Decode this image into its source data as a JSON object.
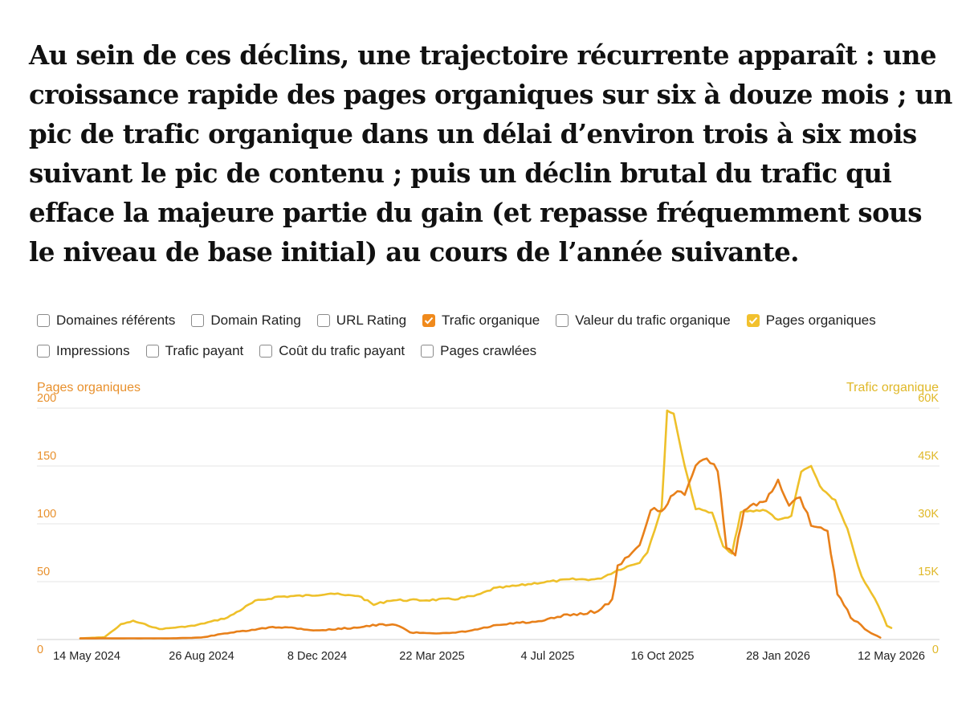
{
  "intro_text": "Au sein de ces déclins, une trajectoire récurrente apparaît : une croissance rapide des pages organiques sur six à douze mois ; un pic de trafic organique dans un délai d’environ trois à six mois suivant le pic de contenu ; puis un déclin brutal du trafic qui efface la majeure partie du gain (et repasse fréquemment sous le niveau de base initial) au cours de l’année suivante.",
  "legend": [
    {
      "label": "Domaines référents",
      "checked": false,
      "color": ""
    },
    {
      "label": "Domain Rating",
      "checked": false,
      "color": ""
    },
    {
      "label": "URL Rating",
      "checked": false,
      "color": ""
    },
    {
      "label": "Trafic organique",
      "checked": true,
      "color": "#f08a1c"
    },
    {
      "label": "Valeur du trafic organique",
      "checked": false,
      "color": ""
    },
    {
      "label": "Pages organiques",
      "checked": true,
      "color": "#f2c12e"
    },
    {
      "label": "Impressions",
      "checked": false,
      "color": ""
    },
    {
      "label": "Trafic payant",
      "checked": false,
      "color": ""
    },
    {
      "label": "Coût du trafic payant",
      "checked": false,
      "color": ""
    },
    {
      "label": "Pages crawlées",
      "checked": false,
      "color": ""
    }
  ],
  "colors": {
    "trafic_organique": "#e8801a",
    "pages_organiques": "#eec02a",
    "left_axis_text": "#e8902c",
    "right_axis_text": "#e0b828",
    "grid": "#e6e6e6",
    "axis": "#cfcfcf"
  },
  "chart_data": {
    "type": "line",
    "left_axis_title": "Pages organiques",
    "right_axis_title": "Trafic organique",
    "left_ylim": [
      0,
      200
    ],
    "right_ylim": [
      0,
      60000
    ],
    "left_ticks": [
      "0",
      "50",
      "100",
      "150",
      "200"
    ],
    "right_ticks": [
      "0",
      "15K",
      "30K",
      "45K",
      "60K"
    ],
    "x_ticks": [
      "14 May 2024",
      "26 Aug 2024",
      "8 Dec 2024",
      "22 Mar 2025",
      "4 Jul 2025",
      "16 Oct 2025",
      "28 Jan 2026",
      "12 May 2026"
    ],
    "grid": true,
    "series": [
      {
        "name": "Trafic organique",
        "axis": "right",
        "points": [
          [
            "2024-05-14",
            300
          ],
          [
            "2024-06-20",
            300
          ],
          [
            "2024-08-01",
            300
          ],
          [
            "2024-09-01",
            500
          ],
          [
            "2024-09-25",
            1700
          ],
          [
            "2024-10-20",
            2500
          ],
          [
            "2024-11-05",
            3300
          ],
          [
            "2024-11-25",
            3000
          ],
          [
            "2024-12-15",
            2300
          ],
          [
            "2025-01-15",
            3000
          ],
          [
            "2025-02-10",
            3800
          ],
          [
            "2025-02-28",
            3700
          ],
          [
            "2025-03-10",
            1800
          ],
          [
            "2025-04-15",
            1600
          ],
          [
            "2025-05-05",
            2300
          ],
          [
            "2025-05-25",
            3500
          ],
          [
            "2025-06-15",
            4300
          ],
          [
            "2025-07-05",
            4500
          ],
          [
            "2025-07-25",
            6000
          ],
          [
            "2025-08-15",
            6800
          ],
          [
            "2025-08-28",
            7500
          ],
          [
            "2025-09-10",
            10000
          ],
          [
            "2025-09-15",
            19000
          ],
          [
            "2025-09-25",
            22000
          ],
          [
            "2025-10-05",
            24000
          ],
          [
            "2025-10-15",
            34000
          ],
          [
            "2025-10-25",
            33000
          ],
          [
            "2025-11-05",
            38000
          ],
          [
            "2025-11-15",
            38000
          ],
          [
            "2025-11-25",
            45000
          ],
          [
            "2025-12-05",
            47000
          ],
          [
            "2025-12-15",
            44000
          ],
          [
            "2025-12-23",
            24000
          ],
          [
            "2025-12-31",
            22000
          ],
          [
            "2026-01-08",
            34000
          ],
          [
            "2026-01-28",
            36000
          ],
          [
            "2026-02-08",
            41000
          ],
          [
            "2026-02-18",
            35000
          ],
          [
            "2026-02-28",
            37000
          ],
          [
            "2026-03-10",
            30000
          ],
          [
            "2026-03-25",
            28000
          ],
          [
            "2026-04-03",
            12000
          ],
          [
            "2026-04-15",
            6000
          ],
          [
            "2026-05-01",
            2000
          ],
          [
            "2026-05-12",
            500
          ]
        ]
      },
      {
        "name": "Pages organiques",
        "axis": "left",
        "points": [
          [
            "2024-05-14",
            1
          ],
          [
            "2024-06-05",
            2
          ],
          [
            "2024-06-20",
            13
          ],
          [
            "2024-07-01",
            16
          ],
          [
            "2024-07-12",
            13
          ],
          [
            "2024-07-25",
            9
          ],
          [
            "2024-08-26",
            12
          ],
          [
            "2024-09-25",
            19
          ],
          [
            "2024-10-20",
            33
          ],
          [
            "2024-11-10",
            37
          ],
          [
            "2024-12-08",
            38
          ],
          [
            "2024-12-28",
            40
          ],
          [
            "2025-01-10",
            38
          ],
          [
            "2025-01-22",
            38
          ],
          [
            "2025-02-05",
            30
          ],
          [
            "2025-02-20",
            34
          ],
          [
            "2025-03-22",
            34
          ],
          [
            "2025-04-20",
            35
          ],
          [
            "2025-05-10",
            38
          ],
          [
            "2025-05-25",
            44
          ],
          [
            "2025-06-20",
            47
          ],
          [
            "2025-07-04",
            49
          ],
          [
            "2025-08-05",
            52
          ],
          [
            "2025-08-28",
            52
          ],
          [
            "2025-09-15",
            60
          ],
          [
            "2025-10-05",
            67
          ],
          [
            "2025-10-12",
            76
          ],
          [
            "2025-10-25",
            113
          ],
          [
            "2025-10-30",
            198
          ],
          [
            "2025-11-05",
            195
          ],
          [
            "2025-11-15",
            150
          ],
          [
            "2025-11-25",
            113
          ],
          [
            "2025-12-10",
            110
          ],
          [
            "2025-12-20",
            80
          ],
          [
            "2025-12-28",
            74
          ],
          [
            "2026-01-05",
            110
          ],
          [
            "2026-01-28",
            112
          ],
          [
            "2026-02-08",
            103
          ],
          [
            "2026-02-20",
            107
          ],
          [
            "2026-03-01",
            145
          ],
          [
            "2026-03-10",
            150
          ],
          [
            "2026-03-18",
            132
          ],
          [
            "2026-04-01",
            120
          ],
          [
            "2026-04-12",
            95
          ],
          [
            "2026-04-25",
            54
          ],
          [
            "2026-05-10",
            30
          ],
          [
            "2026-05-18",
            12
          ],
          [
            "2026-05-22",
            10
          ]
        ]
      }
    ]
  }
}
